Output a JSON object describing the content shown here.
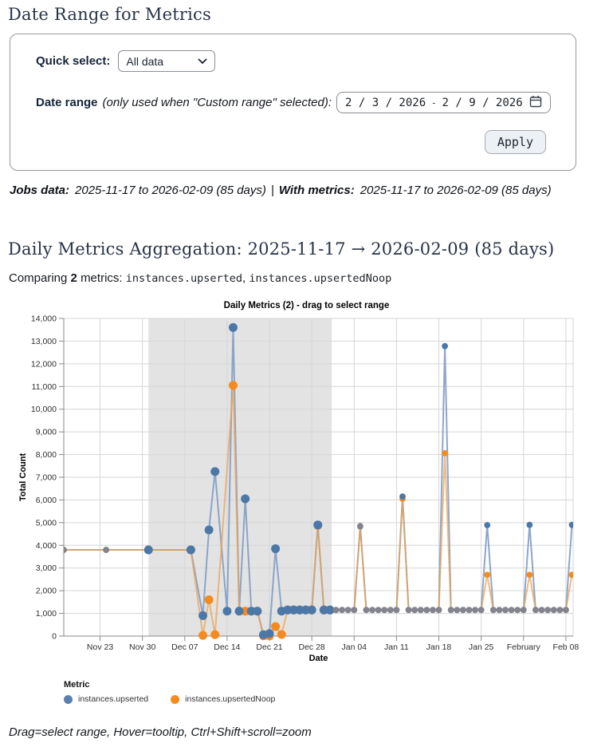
{
  "page": {
    "title": "Date Range for Metrics"
  },
  "form": {
    "quick_select_label": "Quick select:",
    "quick_select_value": "All data",
    "date_range_label": "Date range",
    "date_range_note": "(only used when \"Custom range\" selected):",
    "date_start": "2 / 3 / 2026",
    "date_separator": "-",
    "date_end": "2 / 9 / 2026",
    "apply_label": "Apply"
  },
  "info_line": {
    "jobs_label": "Jobs data:",
    "jobs_value": "2025-11-17 to 2026-02-09 (85 days)",
    "separator": "|",
    "metrics_label": "With metrics:",
    "metrics_value": "2025-11-17 to 2026-02-09 (85 days)"
  },
  "section": {
    "heading": "Daily Metrics Aggregation: 2025-11-17 → 2026-02-09 (85 days)",
    "comparing_prefix": "Comparing",
    "comparing_count": "2",
    "comparing_suffix": "metrics:",
    "metric_1": "instances.upserted",
    "metric_sep": ",",
    "metric_2": "instances.upsertedNoop"
  },
  "chart_data": {
    "type": "line",
    "title": "Daily Metrics (2) - drag to select range",
    "xlabel": "Date",
    "ylabel": "Total Count",
    "ylim": [
      0,
      14000
    ],
    "y_tick_step": 1000,
    "grid": true,
    "legend_position": "bottom-left",
    "series_names": [
      "instances.upserted",
      "instances.upsertedNoop"
    ],
    "colors": {
      "upserted": "#4c78a8",
      "upsertedNoop": "#f58b1e",
      "upserted_line": "#7f9dc6",
      "upsertedNoop_line": "#e9a455",
      "unselected_overlap": "#84848d",
      "selection_fill": "#e3e3e3"
    },
    "selection": {
      "start_day": 14,
      "end_day": 44.3,
      "note": "gray drag-selection region Dec 01 - Dec 31"
    },
    "x_ticks": [
      {
        "day": 6,
        "label": "Nov 23"
      },
      {
        "day": 13,
        "label": "Nov 30"
      },
      {
        "day": 20,
        "label": "Dec 07"
      },
      {
        "day": 27,
        "label": "Dec 14"
      },
      {
        "day": 34,
        "label": "Dec 21"
      },
      {
        "day": 41,
        "label": "Dec 28"
      },
      {
        "day": 48,
        "label": "Jan 04"
      },
      {
        "day": 55,
        "label": "Jan 11"
      },
      {
        "day": 62,
        "label": "Jan 18"
      },
      {
        "day": 69,
        "label": "Jan 25"
      },
      {
        "day": 76,
        "label": "February"
      },
      {
        "day": 83,
        "label": "Feb 08"
      }
    ],
    "points": [
      {
        "day": 0,
        "date": "Nov 17",
        "upserted": 3800,
        "upsertedNoop": 3800,
        "selected": false
      },
      {
        "day": 7,
        "date": "Nov 24",
        "upserted": 3800,
        "upsertedNoop": 3800,
        "selected": false
      },
      {
        "day": 14,
        "date": "Dec 01",
        "upserted": 3800,
        "upsertedNoop": 3800,
        "selected": true
      },
      {
        "day": 21,
        "date": "Dec 08",
        "upserted": 3800,
        "upsertedNoop": 3800,
        "selected": true
      },
      {
        "day": 23,
        "date": "Dec 10",
        "upserted": 900,
        "upsertedNoop": 30,
        "selected": true
      },
      {
        "day": 24,
        "date": "Dec 11",
        "upserted": 4680,
        "upsertedNoop": 1600,
        "selected": true
      },
      {
        "day": 25,
        "date": "Dec 12",
        "upserted": 7250,
        "upsertedNoop": 60,
        "selected": true
      },
      {
        "day": 27,
        "date": "Dec 14",
        "upserted": 1100,
        "upsertedNoop": null,
        "selected": true
      },
      {
        "day": 28,
        "date": "Dec 15",
        "upserted": 13600,
        "upsertedNoop": 11050,
        "selected": true
      },
      {
        "day": 29,
        "date": "Dec 16",
        "upserted": 1100,
        "upsertedNoop": 1100,
        "selected": true
      },
      {
        "day": 30,
        "date": "Dec 17",
        "upserted": 6050,
        "upsertedNoop": 1100,
        "selected": true
      },
      {
        "day": 31,
        "date": "Dec 18",
        "upserted": 1100,
        "upsertedNoop": 1100,
        "selected": true
      },
      {
        "day": 32,
        "date": "Dec 19",
        "upserted": 1100,
        "upsertedNoop": 1100,
        "selected": true
      },
      {
        "day": 33,
        "date": "Dec 20",
        "upserted": 60,
        "upsertedNoop": 10,
        "selected": true
      },
      {
        "day": 34,
        "date": "Dec 21",
        "upserted": 110,
        "upsertedNoop": 10,
        "selected": true
      },
      {
        "day": 35,
        "date": "Dec 22",
        "upserted": 3850,
        "upsertedNoop": 420,
        "selected": true
      },
      {
        "day": 36,
        "date": "Dec 23",
        "upserted": 1100,
        "upsertedNoop": 70,
        "selected": true
      },
      {
        "day": 37,
        "date": "Dec 24",
        "upserted": 1150,
        "upsertedNoop": 1150,
        "selected": true
      },
      {
        "day": 38,
        "date": "Dec 25",
        "upserted": 1150,
        "upsertedNoop": 1150,
        "selected": true
      },
      {
        "day": 39,
        "date": "Dec 26",
        "upserted": 1150,
        "upsertedNoop": 1150,
        "selected": true
      },
      {
        "day": 40,
        "date": "Dec 27",
        "upserted": 1150,
        "upsertedNoop": 1150,
        "selected": true
      },
      {
        "day": 41,
        "date": "Dec 28",
        "upserted": 1150,
        "upsertedNoop": 1150,
        "selected": true
      },
      {
        "day": 42,
        "date": "Dec 29",
        "upserted": 4900,
        "upsertedNoop": 4880,
        "selected": true
      },
      {
        "day": 43,
        "date": "Dec 30",
        "upserted": 1150,
        "upsertedNoop": 1150,
        "selected": true
      },
      {
        "day": 44,
        "date": "Dec 31",
        "upserted": 1150,
        "upsertedNoop": 1150,
        "selected": true
      },
      {
        "day": 45,
        "date": "Jan 01",
        "upserted": 1150,
        "upsertedNoop": 1150,
        "selected": false
      },
      {
        "day": 46,
        "date": "Jan 02",
        "upserted": 1150,
        "upsertedNoop": 1150,
        "selected": false
      },
      {
        "day": 47,
        "date": "Jan 03",
        "upserted": 1150,
        "upsertedNoop": 1150,
        "selected": false
      },
      {
        "day": 48,
        "date": "Jan 04",
        "upserted": 1150,
        "upsertedNoop": 1150,
        "selected": false
      },
      {
        "day": 49,
        "date": "Jan 05",
        "upserted": 4850,
        "upsertedNoop": 4830,
        "selected": false
      },
      {
        "day": 50,
        "date": "Jan 06",
        "upserted": 1150,
        "upsertedNoop": 1150,
        "selected": false
      },
      {
        "day": 51,
        "date": "Jan 07",
        "upserted": 1150,
        "upsertedNoop": 1150,
        "selected": false
      },
      {
        "day": 52,
        "date": "Jan 08",
        "upserted": 1150,
        "upsertedNoop": 1150,
        "selected": false
      },
      {
        "day": 53,
        "date": "Jan 09",
        "upserted": 1150,
        "upsertedNoop": 1150,
        "selected": false
      },
      {
        "day": 54,
        "date": "Jan 10",
        "upserted": 1150,
        "upsertedNoop": 1150,
        "selected": false
      },
      {
        "day": 55,
        "date": "Jan 11",
        "upserted": 1150,
        "upsertedNoop": 1150,
        "selected": false
      },
      {
        "day": 56,
        "date": "Jan 12",
        "upserted": 6150,
        "upsertedNoop": 6050,
        "selected": false
      },
      {
        "day": 57,
        "date": "Jan 13",
        "upserted": 1150,
        "upsertedNoop": 1150,
        "selected": false
      },
      {
        "day": 58,
        "date": "Jan 14",
        "upserted": 1150,
        "upsertedNoop": 1150,
        "selected": false
      },
      {
        "day": 59,
        "date": "Jan 15",
        "upserted": 1150,
        "upsertedNoop": 1150,
        "selected": false
      },
      {
        "day": 60,
        "date": "Jan 16",
        "upserted": 1150,
        "upsertedNoop": 1150,
        "selected": false
      },
      {
        "day": 61,
        "date": "Jan 17",
        "upserted": 1150,
        "upsertedNoop": 1150,
        "selected": false
      },
      {
        "day": 62,
        "date": "Jan 18",
        "upserted": 1150,
        "upsertedNoop": 1150,
        "selected": false
      },
      {
        "day": 63,
        "date": "Jan 19",
        "upserted": 12780,
        "upsertedNoop": 8060,
        "selected": false
      },
      {
        "day": 64,
        "date": "Jan 20",
        "upserted": 1150,
        "upsertedNoop": 1150,
        "selected": false
      },
      {
        "day": 65,
        "date": "Jan 21",
        "upserted": 1150,
        "upsertedNoop": 1150,
        "selected": false
      },
      {
        "day": 66,
        "date": "Jan 22",
        "upserted": 1150,
        "upsertedNoop": 1150,
        "selected": false
      },
      {
        "day": 67,
        "date": "Jan 23",
        "upserted": 1150,
        "upsertedNoop": 1150,
        "selected": false
      },
      {
        "day": 68,
        "date": "Jan 24",
        "upserted": 1150,
        "upsertedNoop": 1150,
        "selected": false
      },
      {
        "day": 69,
        "date": "Jan 25",
        "upserted": 1150,
        "upsertedNoop": 1150,
        "selected": false
      },
      {
        "day": 70,
        "date": "Jan 26",
        "upserted": 4890,
        "upsertedNoop": 2700,
        "selected": false
      },
      {
        "day": 71,
        "date": "Jan 27",
        "upserted": 1150,
        "upsertedNoop": 1150,
        "selected": false
      },
      {
        "day": 72,
        "date": "Jan 28",
        "upserted": 1150,
        "upsertedNoop": 1150,
        "selected": false
      },
      {
        "day": 73,
        "date": "Jan 29",
        "upserted": 1150,
        "upsertedNoop": 1150,
        "selected": false
      },
      {
        "day": 74,
        "date": "Jan 30",
        "upserted": 1150,
        "upsertedNoop": 1150,
        "selected": false
      },
      {
        "day": 75,
        "date": "Jan 31",
        "upserted": 1150,
        "upsertedNoop": 1150,
        "selected": false
      },
      {
        "day": 76,
        "date": "Feb 01",
        "upserted": 1150,
        "upsertedNoop": 1150,
        "selected": false
      },
      {
        "day": 77,
        "date": "Feb 02",
        "upserted": 4900,
        "upsertedNoop": 2700,
        "selected": false
      },
      {
        "day": 78,
        "date": "Feb 03",
        "upserted": 1150,
        "upsertedNoop": 1150,
        "selected": false
      },
      {
        "day": 79,
        "date": "Feb 04",
        "upserted": 1150,
        "upsertedNoop": 1150,
        "selected": false
      },
      {
        "day": 80,
        "date": "Feb 05",
        "upserted": 1150,
        "upsertedNoop": 1150,
        "selected": false
      },
      {
        "day": 81,
        "date": "Feb 06",
        "upserted": 1150,
        "upsertedNoop": 1150,
        "selected": false
      },
      {
        "day": 82,
        "date": "Feb 07",
        "upserted": 1150,
        "upsertedNoop": 1150,
        "selected": false
      },
      {
        "day": 83,
        "date": "Feb 08",
        "upserted": 1150,
        "upsertedNoop": 1150,
        "selected": false
      },
      {
        "day": 84,
        "date": "Feb 09",
        "upserted": 4900,
        "upsertedNoop": 2700,
        "selected": false
      }
    ]
  },
  "legend": {
    "title": "Metric",
    "items": [
      {
        "label": "instances.upserted",
        "color": "#5b80ae"
      },
      {
        "label": "instances.upsertedNoop",
        "color": "#f58b1e"
      }
    ]
  },
  "footer_note": "Drag=select range, Hover=tooltip, Ctrl+Shift+scroll=zoom"
}
